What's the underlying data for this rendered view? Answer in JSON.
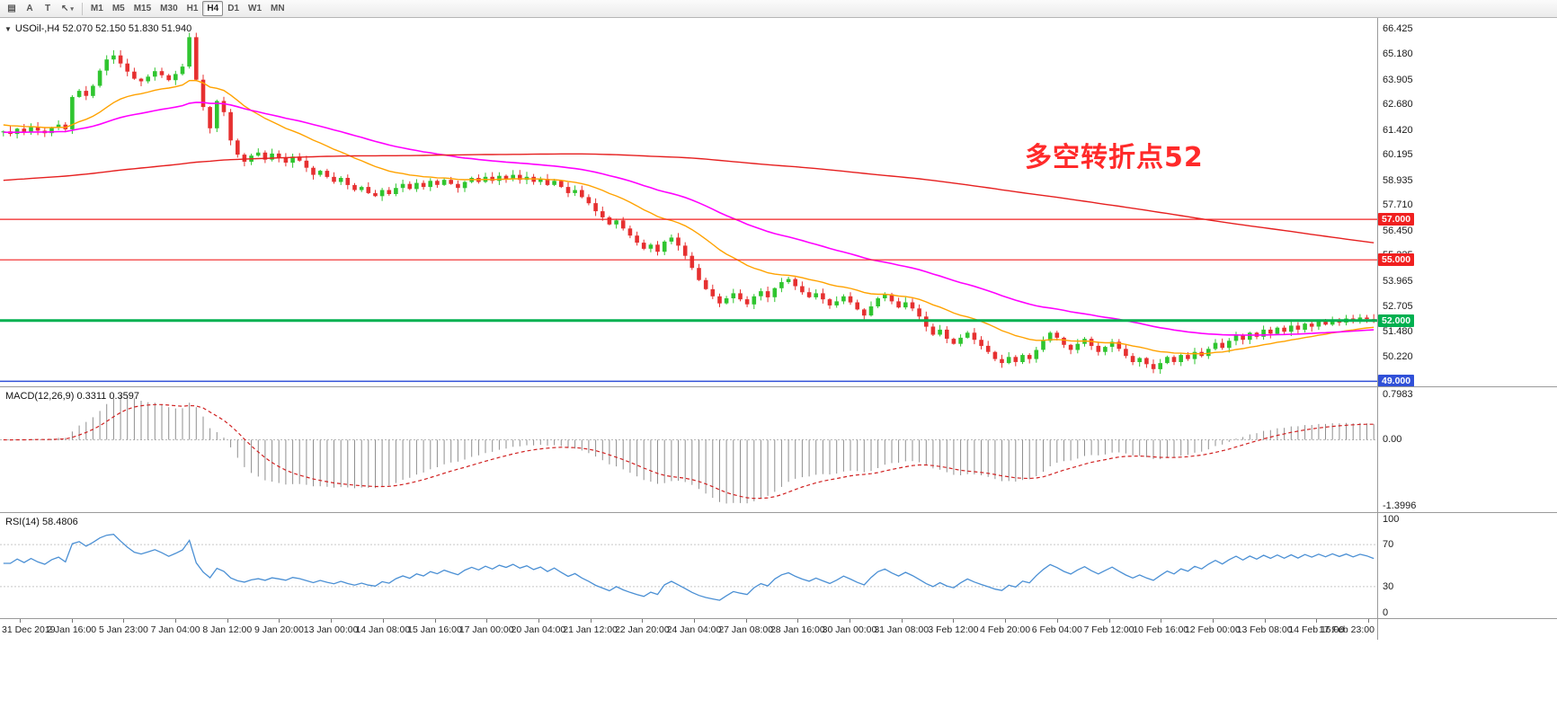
{
  "toolbar": {
    "tools": [
      {
        "name": "chart-list",
        "glyph": "▤"
      },
      {
        "name": "text-label-tool",
        "glyph": "A"
      },
      {
        "name": "drawing-tool",
        "glyph": "T"
      },
      {
        "name": "cursor-tool",
        "glyph": "↖",
        "caret": "▾"
      }
    ],
    "timeframes": [
      {
        "label": "M1",
        "active": false
      },
      {
        "label": "M5",
        "active": false
      },
      {
        "label": "M15",
        "active": false
      },
      {
        "label": "M30",
        "active": false
      },
      {
        "label": "H1",
        "active": false
      },
      {
        "label": "H4",
        "active": true
      },
      {
        "label": "D1",
        "active": false
      },
      {
        "label": "W1",
        "active": false
      },
      {
        "label": "MN",
        "active": false
      }
    ]
  },
  "chart": {
    "header": "USOil-,H4  52.070 52.150 51.830 51.940",
    "annotation_text": "多空转折点52"
  },
  "macd": {
    "label": "MACD(12,26,9) 0.3311 0.3597",
    "axis_top": "0.7983",
    "axis_zero": "0.00",
    "axis_bottom": "-1.3996"
  },
  "rsi": {
    "label": "RSI(14) 58.4806",
    "axis": [
      "100",
      "70",
      "30",
      "0"
    ],
    "levels": [
      70,
      30
    ]
  },
  "time_axis": [
    "31 Dec 2019",
    "2 Jan 16:00",
    "5 Jan 23:00",
    "7 Jan 04:00",
    "8 Jan 12:00",
    "9 Jan 20:00",
    "13 Jan 00:00",
    "14 Jan 08:00",
    "15 Jan 16:00",
    "17 Jan 00:00",
    "20 Jan 04:00",
    "21 Jan 12:00",
    "22 Jan 20:00",
    "24 Jan 04:00",
    "27 Jan 08:00",
    "28 Jan 16:00",
    "30 Jan 00:00",
    "31 Jan 08:00",
    "3 Feb 12:00",
    "4 Feb 20:00",
    "6 Feb 04:00",
    "7 Feb 12:00",
    "10 Feb 16:00",
    "12 Feb 00:00",
    "13 Feb 08:00",
    "14 Feb 16:00",
    "17 Feb 23:00"
  ],
  "chart_data": {
    "type": "candlestick",
    "symbol": "USOil",
    "timeframe": "H4",
    "last_ohlc": {
      "open": 52.07,
      "high": 52.15,
      "low": 51.83,
      "close": 51.94
    },
    "y_axis": {
      "top_price": 66.95,
      "bottom_price": 48.75
    },
    "price_axis_labels": [
      "66.425",
      "65.180",
      "63.905",
      "62.680",
      "61.420",
      "60.195",
      "58.935",
      "57.710",
      "56.450",
      "55.225",
      "53.965",
      "52.705",
      "51.480",
      "50.220"
    ],
    "hlines": [
      {
        "price": 57.0,
        "label": "57.000",
        "color": "#f02020",
        "width": 1.2
      },
      {
        "price": 55.0,
        "label": "55.000",
        "color": "#f02020",
        "width": 1.2
      },
      {
        "price": 52.0,
        "label": "52.000",
        "color": "#00b050",
        "width": 3
      },
      {
        "price": 49.0,
        "label": "49.000",
        "color": "#3050d8",
        "width": 1.5
      }
    ],
    "moving_averages": [
      {
        "key": "ma_fast",
        "type": "ema",
        "period": 21,
        "seed": 61.7
      },
      {
        "key": "ma_mid",
        "type": "ema",
        "period": 55,
        "seed": 61.3
      },
      {
        "key": "ma_slow",
        "type": "sma",
        "period": 200
      }
    ],
    "indicators": [
      {
        "name": "MACD",
        "params": [
          12,
          26,
          9
        ]
      },
      {
        "name": "RSI",
        "params": [
          14
        ]
      }
    ],
    "candles": {
      "first_open": 61.3,
      "closes": [
        61.35,
        61.22,
        61.48,
        61.3,
        61.55,
        61.38,
        61.26,
        61.52,
        61.68,
        61.45,
        63.05,
        63.35,
        63.1,
        63.6,
        64.35,
        64.9,
        65.1,
        64.7,
        64.3,
        63.95,
        63.82,
        64.05,
        64.32,
        64.12,
        63.88,
        64.18,
        64.55,
        66.0,
        63.9,
        62.55,
        61.5,
        62.85,
        62.3,
        60.9,
        60.2,
        59.85,
        60.15,
        60.3,
        59.95,
        60.25,
        60.05,
        59.8,
        60.1,
        59.9,
        59.55,
        59.2,
        59.4,
        59.1,
        58.85,
        59.05,
        58.7,
        58.45,
        58.6,
        58.3,
        58.15,
        58.45,
        58.25,
        58.55,
        58.75,
        58.5,
        58.8,
        58.6,
        58.9,
        58.7,
        58.95,
        58.75,
        58.55,
        58.85,
        59.05,
        58.85,
        59.1,
        58.9,
        59.15,
        59.0,
        59.2,
        58.95,
        59.1,
        58.85,
        59.0,
        58.7,
        58.9,
        58.6,
        58.3,
        58.45,
        58.1,
        57.8,
        57.4,
        57.1,
        56.75,
        56.95,
        56.55,
        56.2,
        55.85,
        55.55,
        55.75,
        55.4,
        55.9,
        56.1,
        55.7,
        55.2,
        54.6,
        54.0,
        53.55,
        53.2,
        52.85,
        53.1,
        53.35,
        53.05,
        52.8,
        53.2,
        53.45,
        53.15,
        53.6,
        53.9,
        54.05,
        53.7,
        53.4,
        53.15,
        53.35,
        53.05,
        52.75,
        52.95,
        53.2,
        52.9,
        52.55,
        52.25,
        52.7,
        53.1,
        53.3,
        52.95,
        52.65,
        52.9,
        52.6,
        52.2,
        51.7,
        51.3,
        51.55,
        51.1,
        50.85,
        51.15,
        51.4,
        51.05,
        50.75,
        50.45,
        50.1,
        49.9,
        50.2,
        49.95,
        50.3,
        50.1,
        50.55,
        51.0,
        51.4,
        51.15,
        50.8,
        50.55,
        50.85,
        51.1,
        50.75,
        50.45,
        50.7,
        50.95,
        50.6,
        50.25,
        49.95,
        50.15,
        49.85,
        49.6,
        49.9,
        50.2,
        49.95,
        50.3,
        50.1,
        50.45,
        50.25,
        50.6,
        50.9,
        50.65,
        51.0,
        51.3,
        51.05,
        51.4,
        51.2,
        51.55,
        51.35,
        51.65,
        51.45,
        51.75,
        51.55,
        51.85,
        51.7,
        51.95,
        51.8,
        52.05,
        51.9,
        52.1,
        51.95,
        52.15,
        52.07,
        51.94
      ]
    }
  },
  "colors": {
    "candle_up": "#2fc52f",
    "candle_down": "#e63030",
    "ma_fast": "#ffa200",
    "ma_mid": "#ff00ff",
    "ma_slow": "#e62020",
    "rsi_line": "#4a8fd4",
    "rsi_level": "#c8c8c8",
    "macd_hist": "#8f8f8f",
    "macd_signal": "#d02020",
    "macd_zero": "#b8b8b8",
    "annotation": "#ff2a2a"
  }
}
